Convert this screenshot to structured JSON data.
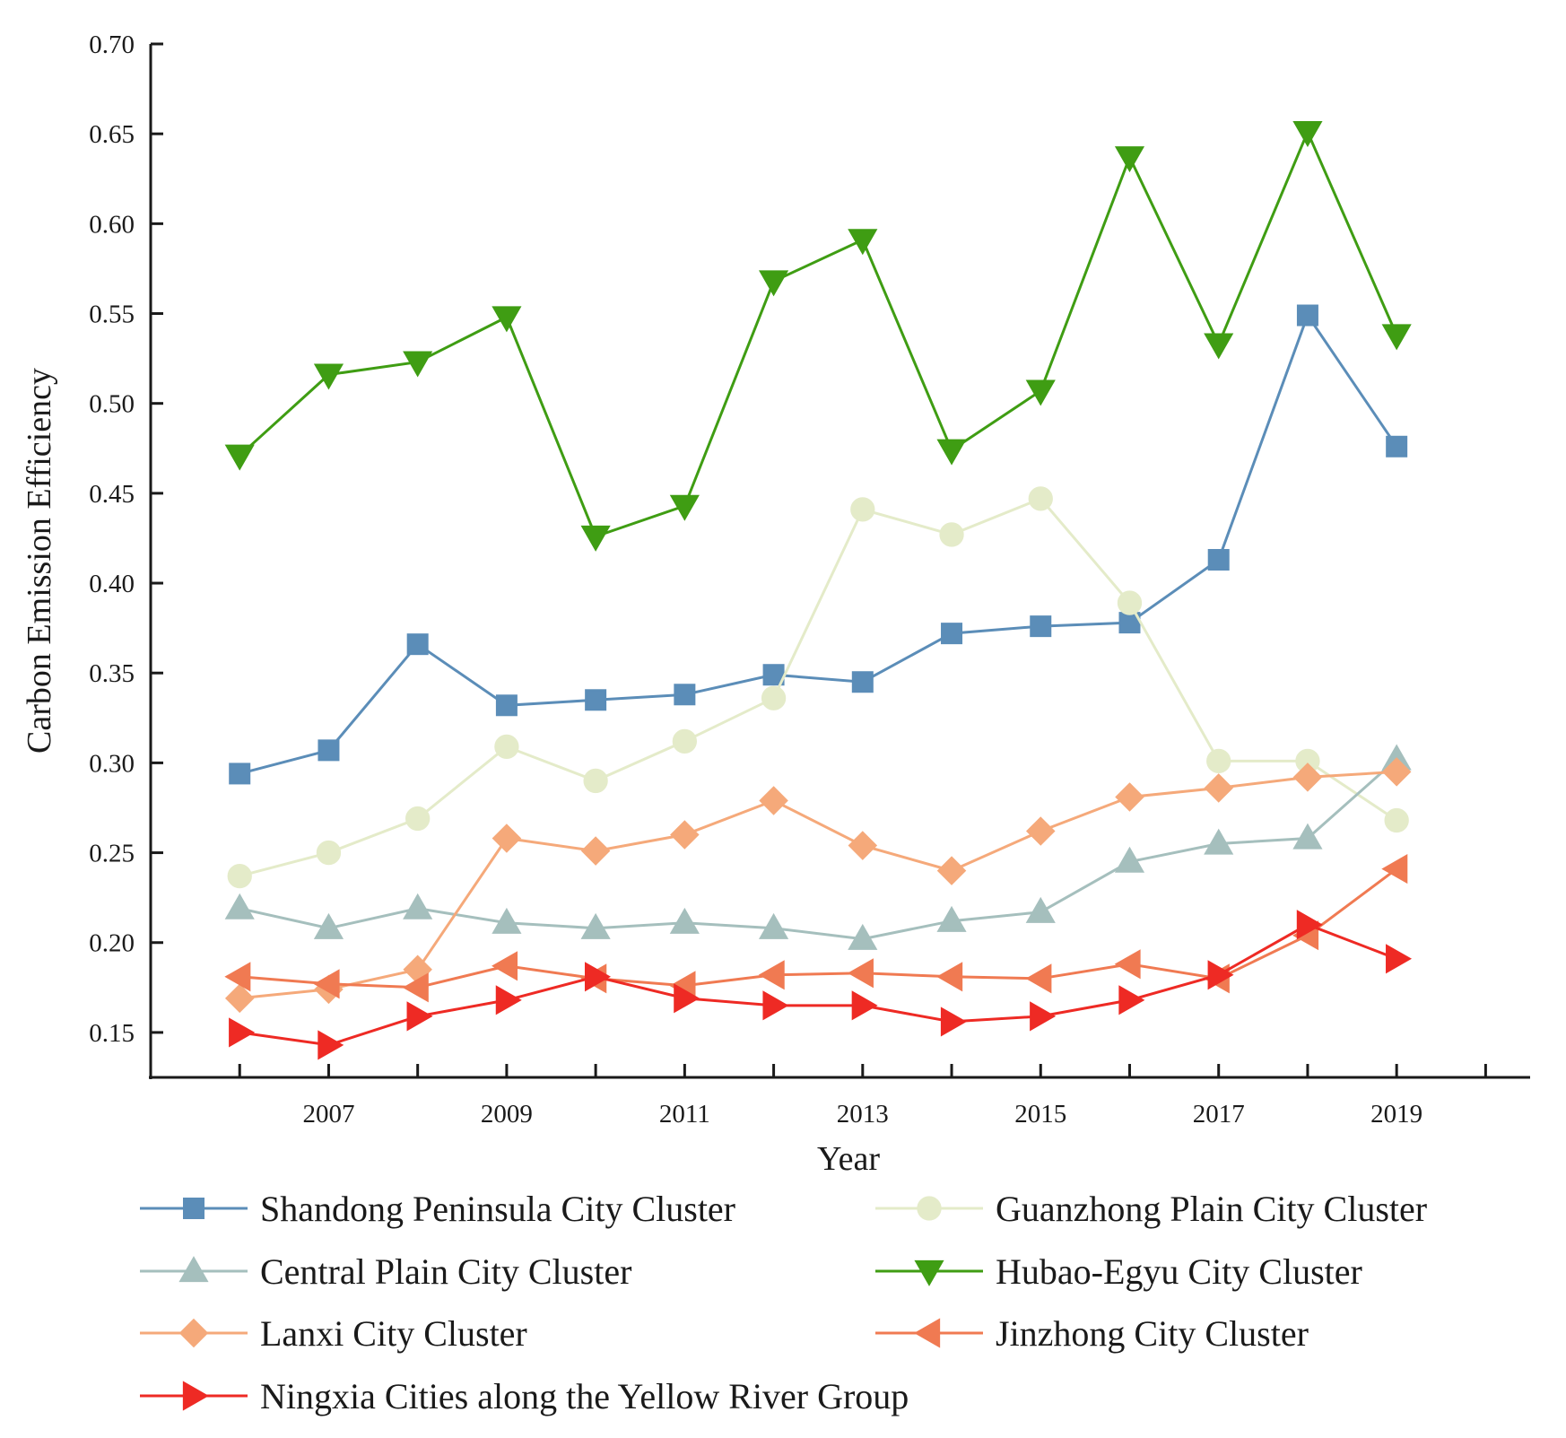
{
  "chart_data": {
    "type": "line",
    "title": "",
    "xlabel": "Year",
    "ylabel": "Carbon Emission Efficiency",
    "xlim": [
      2005.0,
      2020.5
    ],
    "ylim": [
      0.125,
      0.7
    ],
    "x_ticks": [
      2007,
      2009,
      2011,
      2013,
      2015,
      2017,
      2019
    ],
    "x_tick_labels": [
      "2007",
      "2009",
      "2011",
      "2013",
      "2015",
      "2017",
      "2019"
    ],
    "x_minor_ticks": [
      2006,
      2008,
      2010,
      2012,
      2014,
      2016,
      2018,
      2020
    ],
    "y_ticks": [
      0.15,
      0.2,
      0.25,
      0.3,
      0.35,
      0.4,
      0.45,
      0.5,
      0.55,
      0.6,
      0.65,
      0.7
    ],
    "y_tick_labels": [
      "0.15",
      "0.20",
      "0.25",
      "0.30",
      "0.35",
      "0.40",
      "0.45",
      "0.50",
      "0.55",
      "0.60",
      "0.65",
      "0.70"
    ],
    "grid": false,
    "legend_position": "bottom",
    "x": [
      2006,
      2007,
      2008,
      2009,
      2010,
      2011,
      2012,
      2013,
      2014,
      2015,
      2016,
      2017,
      2018,
      2019
    ],
    "series": [
      {
        "name": "Shandong Peninsula City Cluster",
        "color": "#5b8db8",
        "marker": "square",
        "values": [
          0.294,
          0.307,
          0.366,
          0.332,
          0.335,
          0.338,
          0.349,
          0.345,
          0.372,
          0.376,
          0.378,
          0.413,
          0.549,
          0.476
        ]
      },
      {
        "name": "Guanzhong Plain City Cluster",
        "color": "#e4ebc9",
        "marker": "circle",
        "values": [
          0.237,
          0.25,
          0.269,
          0.309,
          0.29,
          0.312,
          0.336,
          0.441,
          0.427,
          0.447,
          0.389,
          0.301,
          0.301,
          0.268
        ]
      },
      {
        "name": "Central Plain City Cluster",
        "color": "#a5bfbd",
        "marker": "triangle-up",
        "values": [
          0.219,
          0.208,
          0.219,
          0.211,
          0.208,
          0.211,
          0.208,
          0.202,
          0.212,
          0.217,
          0.245,
          0.255,
          0.258,
          0.302
        ]
      },
      {
        "name": "Hubao-Egyu City Cluster",
        "color": "#3f9d13",
        "marker": "triangle-down",
        "values": [
          0.471,
          0.516,
          0.523,
          0.548,
          0.426,
          0.443,
          0.568,
          0.591,
          0.474,
          0.507,
          0.637,
          0.533,
          0.651,
          0.538
        ]
      },
      {
        "name": "Lanxi City Cluster",
        "color": "#f5a97a",
        "marker": "diamond",
        "values": [
          0.169,
          0.174,
          0.185,
          0.258,
          0.251,
          0.26,
          0.279,
          0.254,
          0.24,
          0.262,
          0.281,
          0.286,
          0.292,
          0.295
        ]
      },
      {
        "name": "Jinzhong City Cluster",
        "color": "#f07a52",
        "marker": "triangle-left",
        "values": [
          0.181,
          0.177,
          0.175,
          0.187,
          0.18,
          0.176,
          0.182,
          0.183,
          0.181,
          0.18,
          0.188,
          0.18,
          0.204,
          0.241
        ]
      },
      {
        "name": "Ningxia Cities along the Yellow River Group",
        "color": "#ee2a24",
        "marker": "triangle-right",
        "values": [
          0.15,
          0.143,
          0.159,
          0.168,
          0.181,
          0.169,
          0.165,
          0.165,
          0.156,
          0.159,
          0.168,
          0.182,
          0.21,
          0.191
        ]
      }
    ]
  }
}
